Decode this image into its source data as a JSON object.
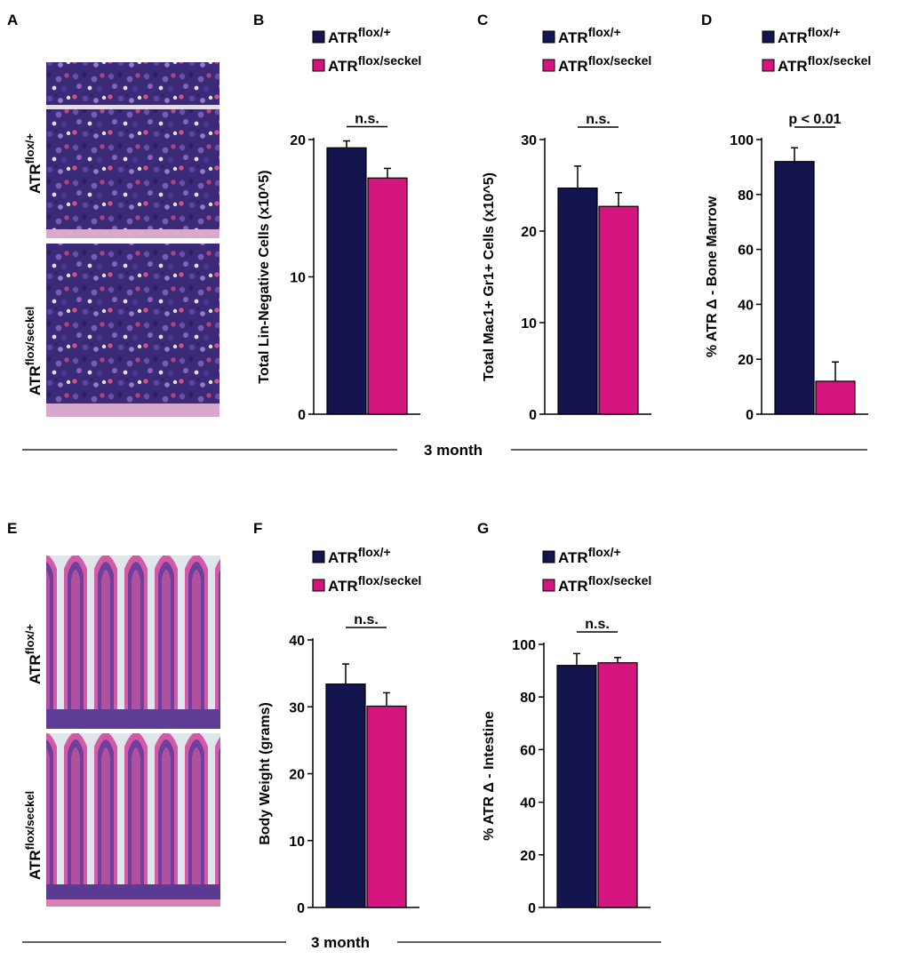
{
  "colors": {
    "series1": "#14154f",
    "series2": "#d4157f",
    "axis": "#000000"
  },
  "panel_letters": {
    "A": "A",
    "B": "B",
    "C": "C",
    "D": "D",
    "E": "E",
    "F": "F",
    "G": "G"
  },
  "micrographs": {
    "A": {
      "top_label": "ATR",
      "top_sup": "flox/+",
      "bottom_label": "ATR",
      "bottom_sup": "flox/seckel",
      "stain": "bone-marrow-hematoxylin-eosin"
    },
    "E": {
      "top_label": "ATR",
      "top_sup": "flox/+",
      "bottom_label": "ATR",
      "bottom_sup": "flox/seckel",
      "stain": "intestine-hematoxylin-eosin"
    }
  },
  "timepoints": {
    "row1": "3 month",
    "row2": "3 month"
  },
  "chart_data": [
    {
      "panel": "B",
      "type": "bar",
      "ylabel": "Total Lin-Negative Cells (x10^5)",
      "ylim": [
        0,
        20
      ],
      "yticks": [
        0,
        10,
        20
      ],
      "series": [
        {
          "name": "ATR",
          "sup": "flox/+",
          "value": 19.4,
          "error": 0.5
        },
        {
          "name": "ATR",
          "sup": "flox/seckel",
          "value": 17.2,
          "error": 0.7
        }
      ],
      "annotation": "n.s.",
      "legend": "top"
    },
    {
      "panel": "C",
      "type": "bar",
      "ylabel": "Total Mac1+ Gr1+ Cells (x10^5)",
      "ylim": [
        0,
        30
      ],
      "yticks": [
        0,
        10,
        20,
        30
      ],
      "series": [
        {
          "name": "ATR",
          "sup": "flox/+",
          "value": 24.7,
          "error": 2.4
        },
        {
          "name": "ATR",
          "sup": "flox/seckel",
          "value": 22.7,
          "error": 1.5
        }
      ],
      "annotation": "n.s.",
      "legend": "top"
    },
    {
      "panel": "D",
      "type": "bar",
      "ylabel": "% ATR Δ - Bone Marrow",
      "ylim": [
        0,
        100
      ],
      "yticks": [
        0,
        20,
        40,
        60,
        80,
        100
      ],
      "series": [
        {
          "name": "ATR",
          "sup": "flox/+",
          "value": 92,
          "error": 5
        },
        {
          "name": "ATR",
          "sup": "flox/seckel",
          "value": 12,
          "error": 7
        }
      ],
      "annotation": "p < 0.01",
      "legend": "top"
    },
    {
      "panel": "F",
      "type": "bar",
      "ylabel": "Body Weight (grams)",
      "ylim": [
        0,
        40
      ],
      "yticks": [
        0,
        10,
        20,
        30,
        40
      ],
      "series": [
        {
          "name": "ATR",
          "sup": "flox/+",
          "value": 33.4,
          "error": 3.0
        },
        {
          "name": "ATR",
          "sup": "flox/seckel",
          "value": 30.1,
          "error": 2.0
        }
      ],
      "annotation": "n.s.",
      "legend": "top"
    },
    {
      "panel": "G",
      "type": "bar",
      "ylabel": "% ATR Δ - Intestine",
      "ylim": [
        0,
        100
      ],
      "yticks": [
        0,
        20,
        40,
        60,
        80,
        100
      ],
      "series": [
        {
          "name": "ATR",
          "sup": "flox/+",
          "value": 92,
          "error": 4.5
        },
        {
          "name": "ATR",
          "sup": "flox/seckel",
          "value": 93,
          "error": 2
        }
      ],
      "annotation": "n.s.",
      "legend": "top"
    }
  ]
}
